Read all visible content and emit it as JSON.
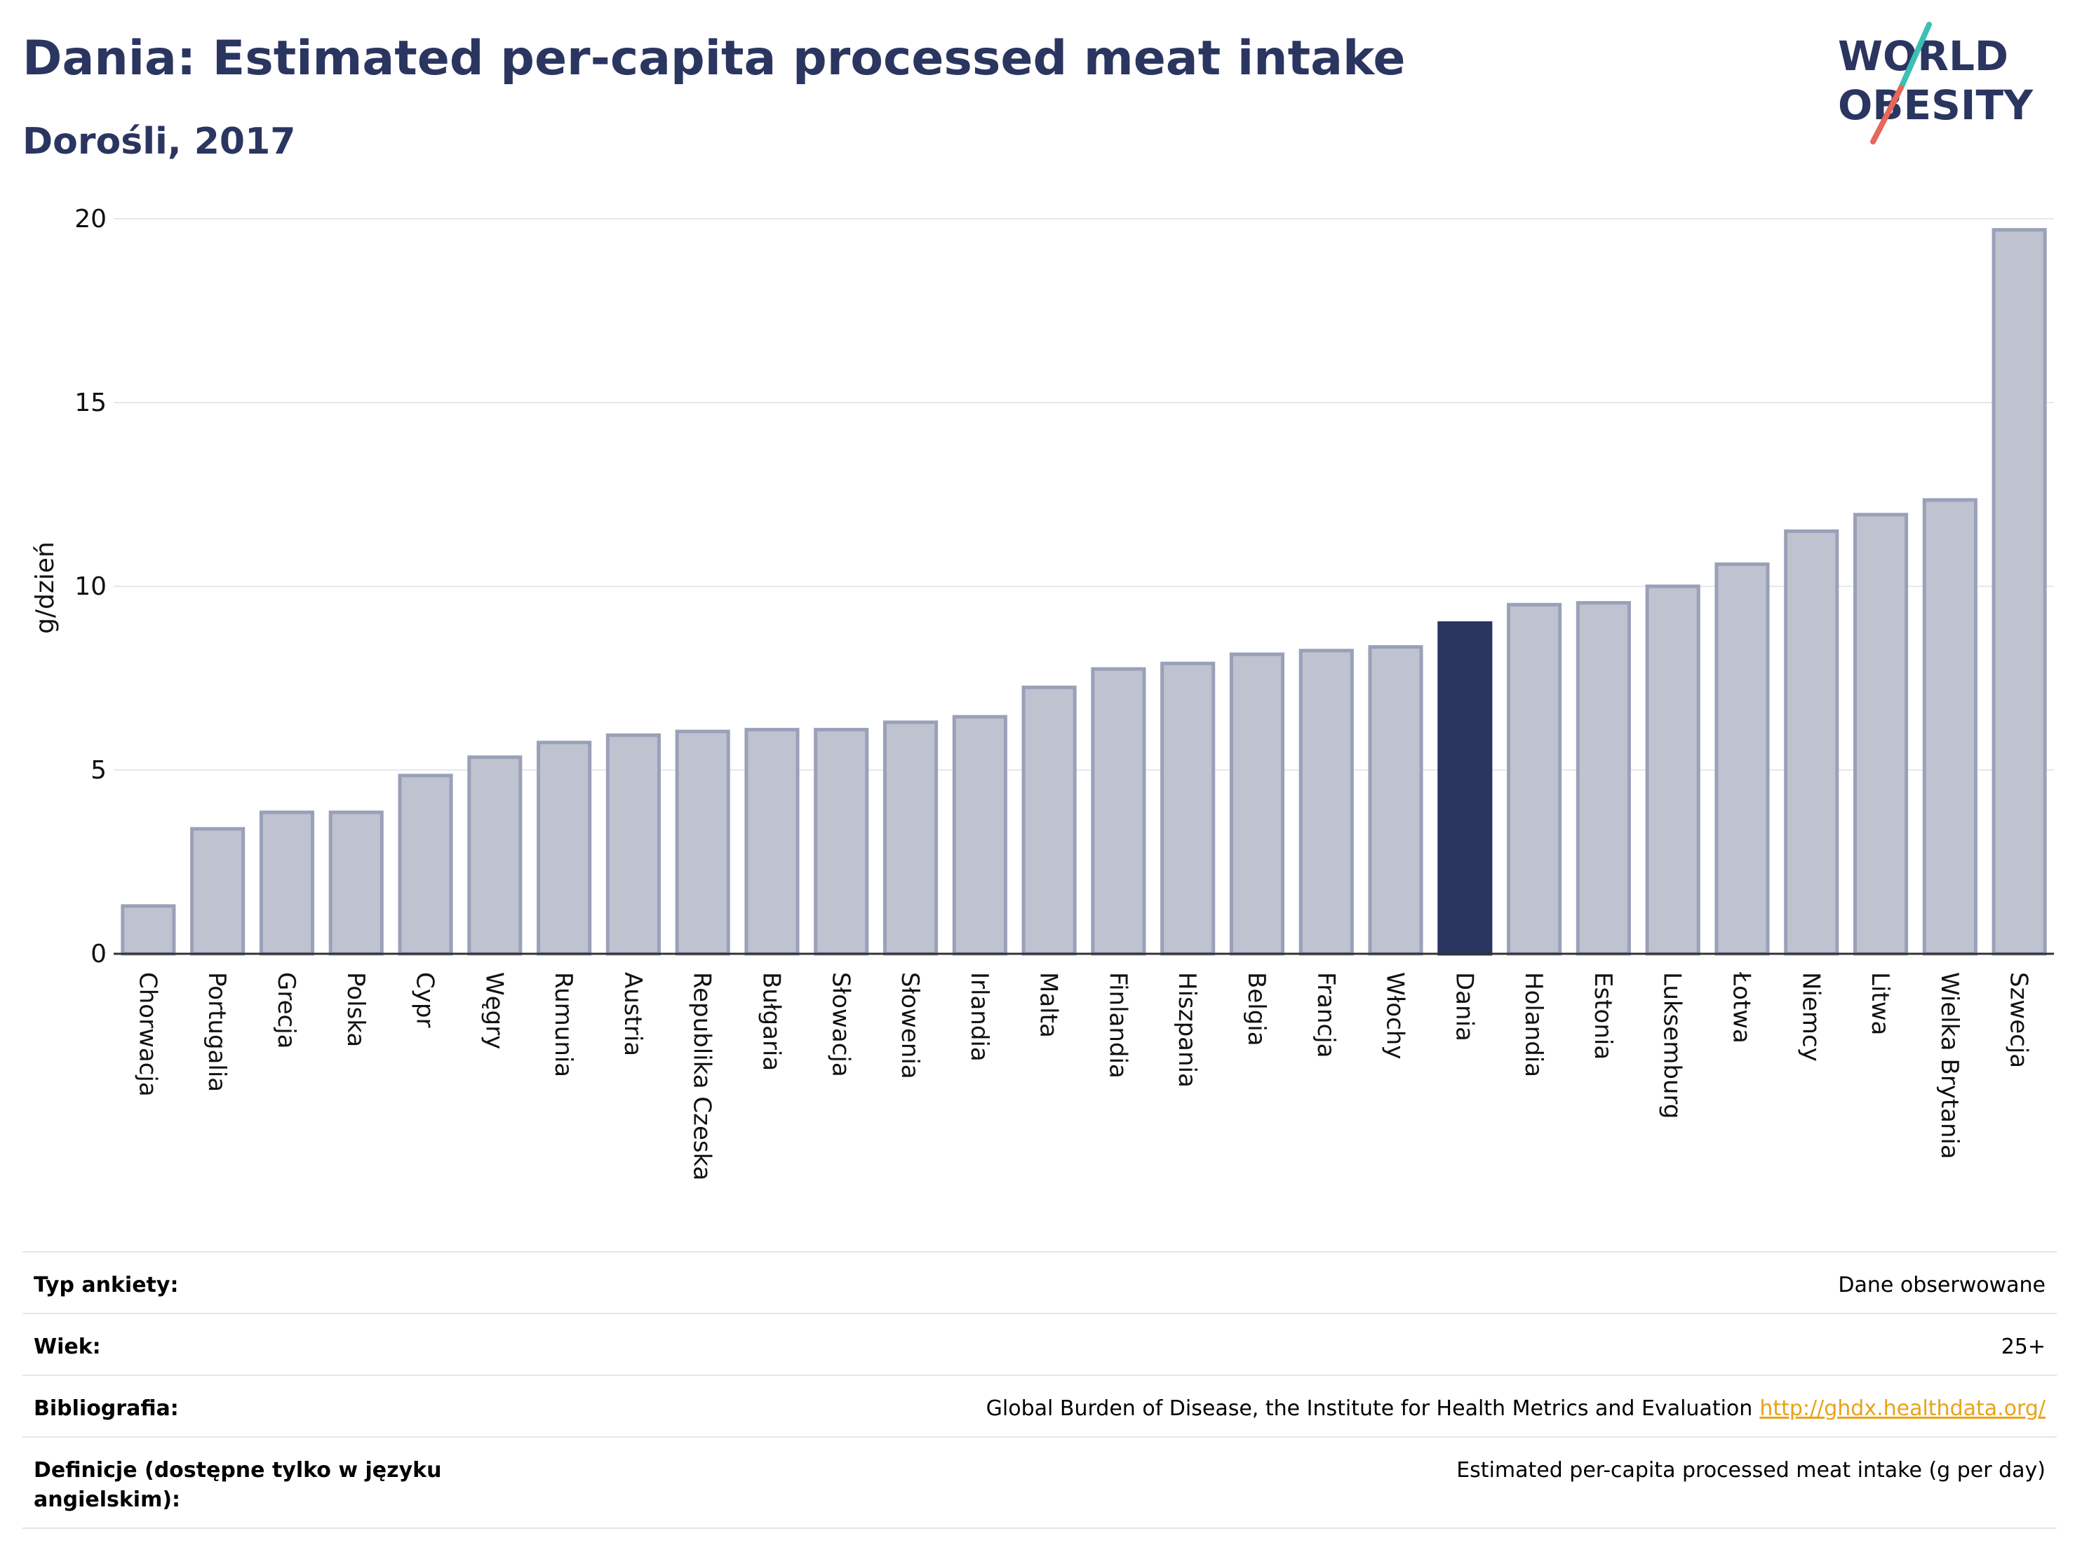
{
  "header": {
    "title": "Dania: Estimated per-capita processed meat intake",
    "subtitle": "Dorośli, 2017"
  },
  "logo": {
    "line1": "WORLD",
    "line2": "OBESITY",
    "colors": {
      "text": "#2a3560",
      "slash_top": "#3cbfb4",
      "slash_bottom": "#e8665a"
    }
  },
  "colors": {
    "bar_fill": "#bfc3d0",
    "bar_stroke": "#9aa0b8",
    "highlight": "#2a3560",
    "grid": "#e6e8ef",
    "axis": "#333333"
  },
  "chart_data": {
    "type": "bar",
    "title": "Dania: Estimated per-capita processed meat intake",
    "subtitle": "Dorośli, 2017",
    "xlabel": "",
    "ylabel": "g/dzień",
    "ylim": [
      0,
      20
    ],
    "yticks": [
      0,
      5,
      10,
      15,
      20
    ],
    "grid": true,
    "highlight": "Dania",
    "categories": [
      "Chorwacja",
      "Portugalia",
      "Grecja",
      "Polska",
      "Cypr",
      "Węgry",
      "Rumunia",
      "Austria",
      "Republika Czeska",
      "Bułgaria",
      "Słowacja",
      "Słowenia",
      "Irlandia",
      "Malta",
      "Finlandia",
      "Hiszpania",
      "Belgia",
      "Francja",
      "Włochy",
      "Dania",
      "Holandia",
      "Estonia",
      "Luksemburg",
      "Łotwa",
      "Niemcy",
      "Litwa",
      "Wielka Brytania",
      "Szwecja"
    ],
    "values": [
      1.3,
      3.4,
      3.85,
      3.85,
      4.85,
      5.35,
      5.75,
      5.95,
      6.05,
      6.1,
      6.1,
      6.3,
      6.45,
      7.25,
      7.75,
      7.9,
      8.15,
      8.25,
      8.35,
      9.0,
      9.5,
      9.55,
      10.0,
      10.6,
      11.5,
      11.95,
      12.35,
      19.7
    ]
  },
  "info": {
    "rows": [
      {
        "label": "Typ ankiety:",
        "value": "Dane obserwowane"
      },
      {
        "label": "Wiek:",
        "value": "25+"
      },
      {
        "label": "Bibliografia:",
        "value": "Global Burden of Disease, the Institute for Health Metrics and Evaluation",
        "link": "http://ghdx.healthdata.org/"
      },
      {
        "label": "Definicje (dostępne tylko w języku angielskim):",
        "value": "Estimated per-capita processed meat intake (g per day)"
      }
    ]
  }
}
